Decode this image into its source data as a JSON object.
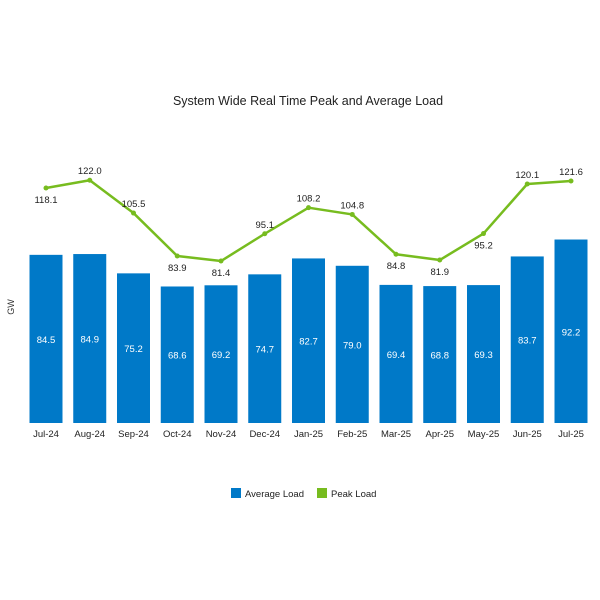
{
  "chart_data": {
    "type": "bar",
    "title": "System Wide Real Time Peak and Average Load",
    "xlabel": "",
    "ylabel": "GW",
    "ylim": [
      0,
      130
    ],
    "grid": false,
    "legend_position": "bottom",
    "categories": [
      "Jul-24",
      "Aug-24",
      "Sep-24",
      "Oct-24",
      "Nov-24",
      "Dec-24",
      "Jan-25",
      "Feb-25",
      "Mar-25",
      "Apr-25",
      "May-25",
      "Jun-25",
      "Jul-25"
    ],
    "series": [
      {
        "name": "Average Load",
        "type": "bar",
        "color": "#0079C8",
        "values": [
          84.5,
          84.9,
          75.2,
          68.6,
          69.2,
          74.7,
          82.7,
          79.0,
          69.4,
          68.8,
          69.3,
          83.7,
          92.2
        ],
        "labels": [
          "84.5",
          "84.9",
          "75.2",
          "68.6",
          "69.2",
          "74.7",
          "82.7",
          "79.0",
          "69.4",
          "68.8",
          "69.3",
          "83.7",
          "92.2"
        ]
      },
      {
        "name": "Peak Load",
        "type": "line",
        "color": "#77BC1F",
        "values": [
          118.1,
          122.0,
          105.5,
          83.9,
          81.4,
          95.1,
          108.2,
          104.8,
          84.8,
          81.9,
          95.2,
          120.1,
          121.6
        ],
        "labels": [
          "118.1",
          "122.0",
          "105.5",
          "83.9",
          "81.4",
          "95.1",
          "108.2",
          "104.8",
          "84.8",
          "81.9",
          "95.2",
          "120.1",
          "121.6"
        ]
      }
    ]
  }
}
